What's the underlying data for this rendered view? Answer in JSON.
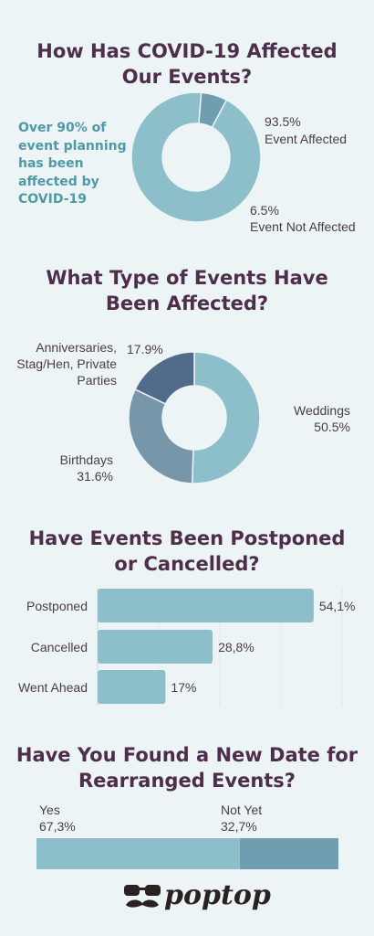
{
  "colors": {
    "background": "#edf4f6",
    "title": "#4d2e4b",
    "callout": "#4f9aa6",
    "teal_light": "#8dbfca",
    "teal_mid": "#6f9eb0",
    "slate_mid": "#7796a9",
    "slate_dark": "#526b8a",
    "text": "#4a3b4f"
  },
  "section1": {
    "title_line1": "How Has COVID-19 Affected",
    "title_line2": "Our Events?",
    "callout_lines": [
      "Over 90% of",
      "event planning",
      "has been",
      "affected by",
      "COVID-19"
    ],
    "labels": [
      {
        "pct": "93.5%",
        "name": "Event Affected"
      },
      {
        "pct": "6.5%",
        "name": "Event Not Affected"
      }
    ]
  },
  "section2": {
    "title_line1": "What Type of Events Have",
    "title_line2": "Been Affected?",
    "anniv_lines": [
      "Anniversaries,",
      "Stag/Hen, Private",
      "Parties"
    ],
    "anniv_pct": "17.9%",
    "weddings_name": "Weddings",
    "weddings_pct": "50.5%",
    "birthdays_name": "Birthdays",
    "birthdays_pct": "31.6%"
  },
  "section3": {
    "title_line1": "Have Events Been Postponed",
    "title_line2": "or Cancelled?"
  },
  "section4": {
    "title_line1": "Have You Found a New Date for",
    "title_line2": "Rearranged Events?",
    "yes_name": "Yes",
    "yes_pct": "67,3%",
    "notyet_name": "Not Yet",
    "notyet_pct": "32,7%"
  },
  "logo": {
    "text": "poptop"
  },
  "chart_data": [
    {
      "type": "pie",
      "labels": [
        "Event Affected",
        "Event Not Affected"
      ],
      "values": [
        93.5,
        6.5
      ],
      "colors": [
        "#8dbfca",
        "#6f9eb0"
      ],
      "title": "How Has COVID-19 Affected Our Events?"
    },
    {
      "type": "pie",
      "labels": [
        "Weddings",
        "Birthdays",
        "Anniversaries, Stag/Hen, Private Parties"
      ],
      "values": [
        50.5,
        31.6,
        17.9
      ],
      "colors": [
        "#8dbfca",
        "#7796a9",
        "#526b8a"
      ],
      "title": "What Type of Events Have Been Affected?"
    },
    {
      "type": "bar",
      "orientation": "horizontal",
      "categories": [
        "Postponed",
        "Cancelled",
        "Went Ahead"
      ],
      "values": [
        54.1,
        28.8,
        17
      ],
      "value_labels": [
        "54,1%",
        "28,8%",
        "17%"
      ],
      "title": "Have Events Been Postponed or Cancelled?",
      "xlim": [
        0,
        60
      ]
    },
    {
      "type": "bar",
      "orientation": "horizontal",
      "stacked": true,
      "categories": [
        "Yes",
        "Not Yet"
      ],
      "values": [
        67.3,
        32.7
      ],
      "title": "Have You Found a New Date for Rearranged Events?"
    }
  ]
}
